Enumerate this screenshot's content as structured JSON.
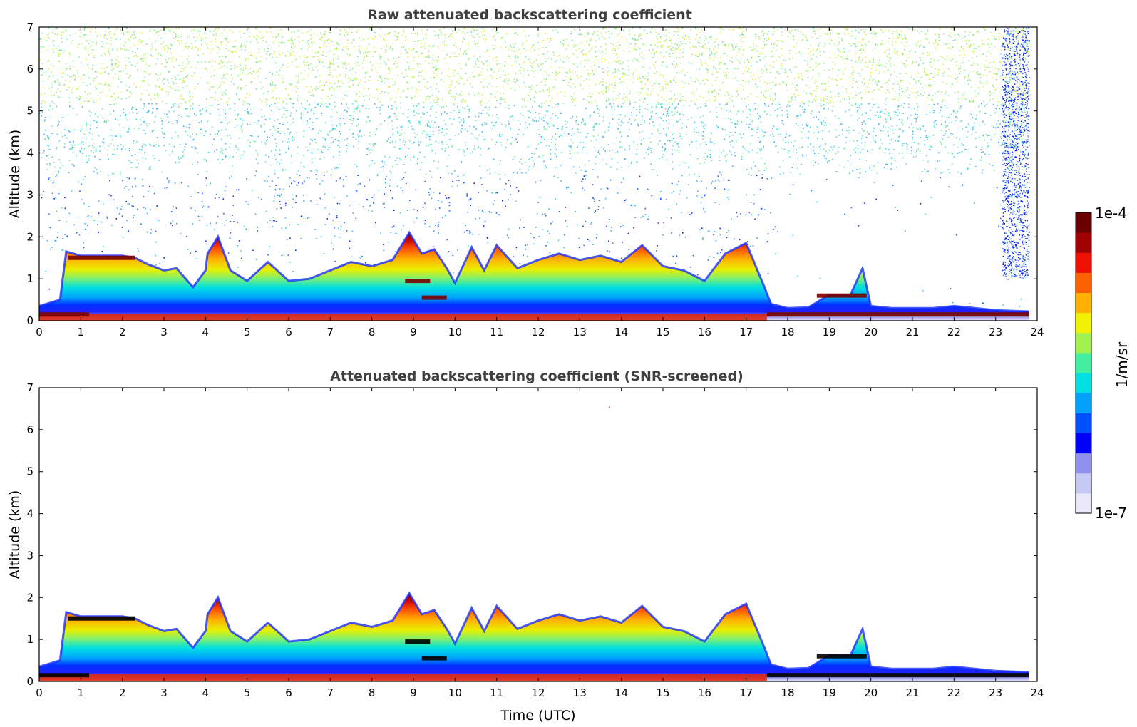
{
  "chart_data": [
    {
      "type": "heatmap",
      "title": "Raw attenuated backscattering coefficient",
      "xlabel": "",
      "ylabel": "Altitude (km)",
      "xlim": [
        0,
        24
      ],
      "ylim": [
        0,
        7
      ],
      "xticks": [
        "0",
        "1",
        "2",
        "3",
        "4",
        "5",
        "6",
        "7",
        "8",
        "9",
        "10",
        "11",
        "12",
        "13",
        "14",
        "15",
        "16",
        "17",
        "18",
        "19",
        "20",
        "21",
        "22",
        "23",
        "24"
      ],
      "yticks": [
        "0",
        "1",
        "2",
        "3",
        "4",
        "5",
        "6",
        "7"
      ],
      "variant": "raw",
      "boundary_layer_top_km": {
        "time": [
          0.0,
          0.5,
          0.65,
          1.0,
          1.5,
          2.0,
          2.3,
          2.6,
          3.0,
          3.3,
          3.7,
          4.0,
          4.05,
          4.3,
          4.6,
          5.0,
          5.5,
          6.0,
          6.5,
          7.0,
          7.5,
          8.0,
          8.5,
          8.9,
          9.2,
          9.5,
          9.8,
          10.0,
          10.4,
          10.7,
          11.0,
          11.5,
          12.0,
          12.5,
          13.0,
          13.5,
          14.0,
          14.5,
          15.0,
          15.5,
          16.0,
          16.5,
          17.0,
          17.4,
          17.6,
          18.0,
          18.5,
          19.0,
          19.5,
          19.8,
          20.0,
          20.5,
          21.0,
          21.5,
          22.0,
          22.5,
          23.0,
          23.8
        ],
        "altitude": [
          0.35,
          0.5,
          1.65,
          1.55,
          1.55,
          1.55,
          1.5,
          1.35,
          1.2,
          1.25,
          0.8,
          1.2,
          1.6,
          2.0,
          1.2,
          0.95,
          1.4,
          0.95,
          1.0,
          1.2,
          1.4,
          1.3,
          1.45,
          2.1,
          1.6,
          1.7,
          1.25,
          0.9,
          1.75,
          1.2,
          1.8,
          1.25,
          1.45,
          1.6,
          1.45,
          1.55,
          1.4,
          1.8,
          1.3,
          1.2,
          0.95,
          1.6,
          1.85,
          0.9,
          0.4,
          0.3,
          0.32,
          0.62,
          0.6,
          1.25,
          0.35,
          0.3,
          0.3,
          0.3,
          0.35,
          0.3,
          0.25,
          0.22
        ]
      },
      "cloud_layers": [
        {
          "t_start": 0.7,
          "t_end": 2.3,
          "altitude_km": 1.5
        },
        {
          "t_start": 0.0,
          "t_end": 1.2,
          "altitude_km": 0.15
        },
        {
          "t_start": 8.8,
          "t_end": 9.4,
          "altitude_km": 0.95
        },
        {
          "t_start": 9.2,
          "t_end": 9.8,
          "altitude_km": 0.55
        },
        {
          "t_start": 17.5,
          "t_end": 23.8,
          "altitude_km": 0.15
        },
        {
          "t_start": 18.7,
          "t_end": 19.9,
          "altitude_km": 0.6
        }
      ]
    },
    {
      "type": "heatmap",
      "title": "Attenuated backscattering coefficient (SNR-screened)",
      "xlabel": "Time (UTC)",
      "ylabel": "Altitude (km)",
      "xlim": [
        0,
        24
      ],
      "ylim": [
        0,
        7
      ],
      "xticks": [
        "0",
        "1",
        "2",
        "3",
        "4",
        "5",
        "6",
        "7",
        "8",
        "9",
        "10",
        "11",
        "12",
        "13",
        "14",
        "15",
        "16",
        "17",
        "18",
        "19",
        "20",
        "21",
        "22",
        "23",
        "24"
      ],
      "yticks": [
        "0",
        "1",
        "2",
        "3",
        "4",
        "5",
        "6",
        "7"
      ],
      "variant": "screened"
    }
  ],
  "colorbar": {
    "label": "1/m/sr",
    "max_label": "1e-4",
    "min_label": "1e-7",
    "scale": "log",
    "colormap": [
      "#e8e8f8",
      "#c8c8f4",
      "#9090ee",
      "#0000ff",
      "#0050ff",
      "#00a0ff",
      "#00e0e0",
      "#40f0a0",
      "#a0f050",
      "#f0f000",
      "#ffb000",
      "#ff6000",
      "#f01000",
      "#a00000",
      "#6a0000"
    ]
  }
}
